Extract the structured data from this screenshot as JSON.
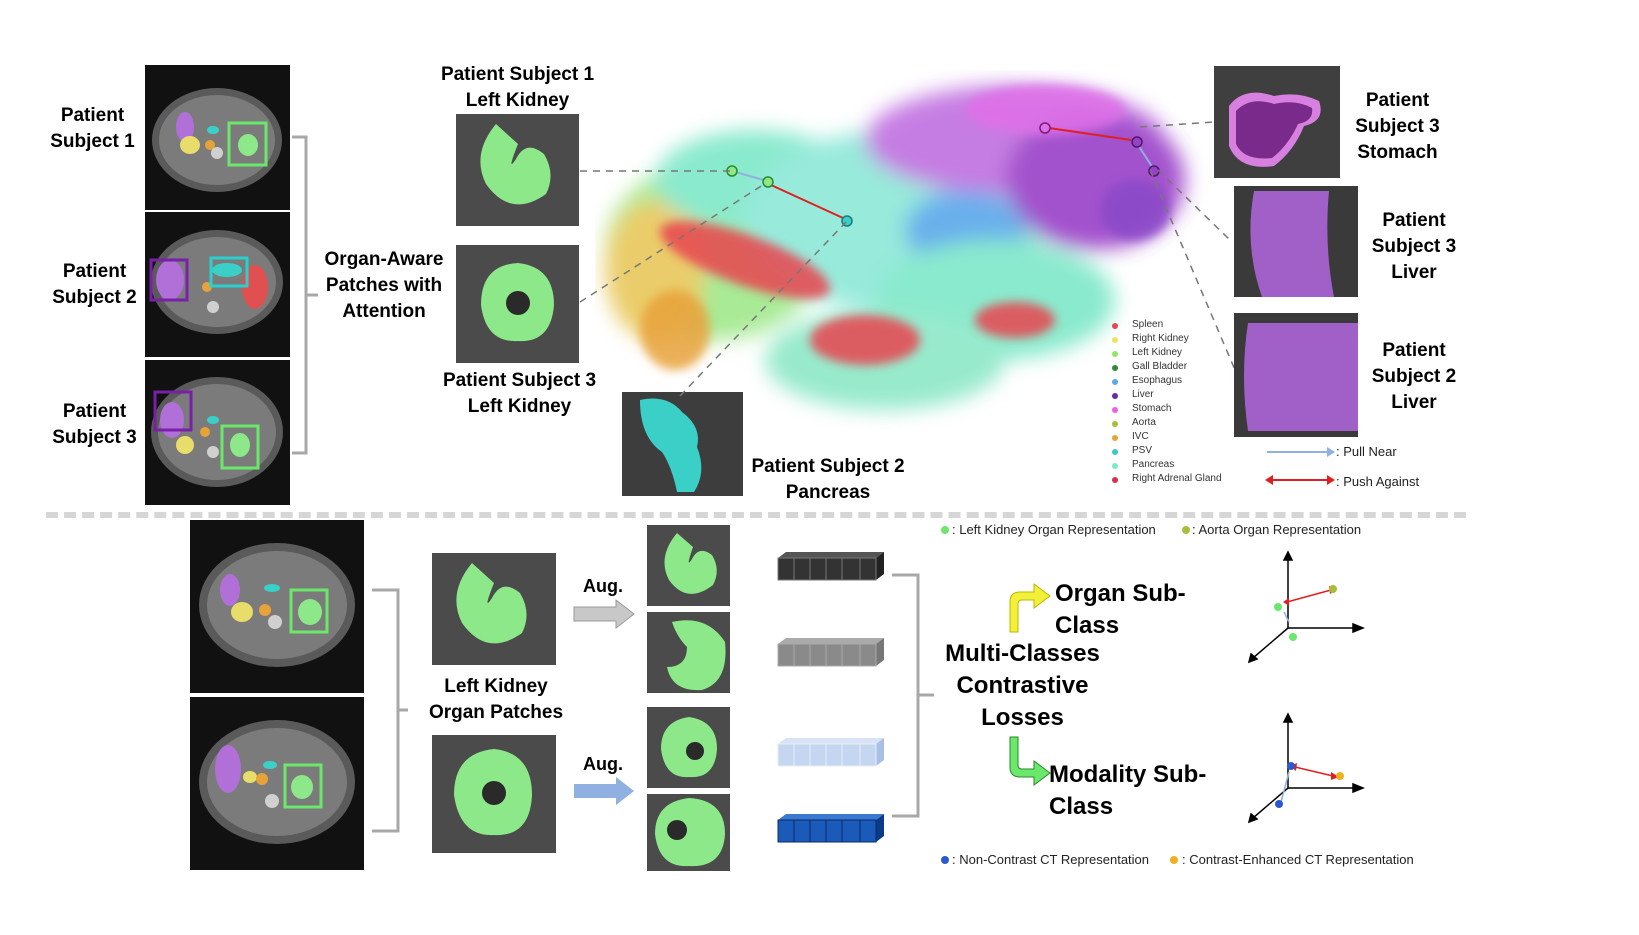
{
  "top": {
    "left_labels": [
      "Patient\nSubject 1",
      "Patient\nSubject 2",
      "Patient\nSubject 3"
    ],
    "organ_aware": "Organ-Aware\nPatches with\nAttention",
    "patch_top_label": "Patient Subject 1\nLeft Kidney",
    "patch_bottom_label": "Patient Subject 3\nLeft Kidney",
    "pancreas_label": "Patient Subject 2\nPancreas",
    "right_labels": [
      "Patient\nSubject 3\nStomach",
      "Patient\nSubject 3\nLiver",
      "Patient\nSubject 2\nLiver"
    ],
    "legend": [
      {
        "name": "Spleen",
        "color": "#e8454f"
      },
      {
        "name": "Right Kidney",
        "color": "#f5e25a"
      },
      {
        "name": "Left Kidney",
        "color": "#8de86a"
      },
      {
        "name": "Gall Bladder",
        "color": "#2f8a3a"
      },
      {
        "name": "Esophagus",
        "color": "#5aa8ea"
      },
      {
        "name": "Liver",
        "color": "#6b2a9e"
      },
      {
        "name": "Stomach",
        "color": "#e860e8"
      },
      {
        "name": "Aorta",
        "color": "#a9bd3a"
      },
      {
        "name": "IVC",
        "color": "#e8a23a"
      },
      {
        "name": "PSV",
        "color": "#3ac8c8"
      },
      {
        "name": "Pancreas",
        "color": "#7ee8c8"
      },
      {
        "name": "Right Adrenal Gland",
        "color": "#d8304a"
      }
    ],
    "pull_near": ": Pull Near",
    "push_against": ": Push Against"
  },
  "bottom": {
    "lk_patches_label": "Left Kidney\nOrgan Patches",
    "aug1": "Aug.",
    "aug2": "Aug.",
    "legend_lk": ": Left Kidney Organ Representation",
    "legend_aorta": ": Aorta Organ Representation",
    "organ_subclass": "Organ Sub-Class",
    "multi_classes": "Multi-Classes\nContrastive\nLosses",
    "modality_subclass": "Modality Sub-Class",
    "legend_noncontrast": ": Non-Contrast CT Representation",
    "legend_contrast": ": Contrast-Enhanced CT Representation"
  },
  "colors": {
    "kidney_green": "#8de88a",
    "aug_gray": "#c8c8c8",
    "aug_blue": "#8fb0e0",
    "push_red": "#e02020",
    "pull_blue": "#8fb0e0",
    "yellow_arrow": "#f3f03a",
    "green_arrow": "#6be86b"
  }
}
